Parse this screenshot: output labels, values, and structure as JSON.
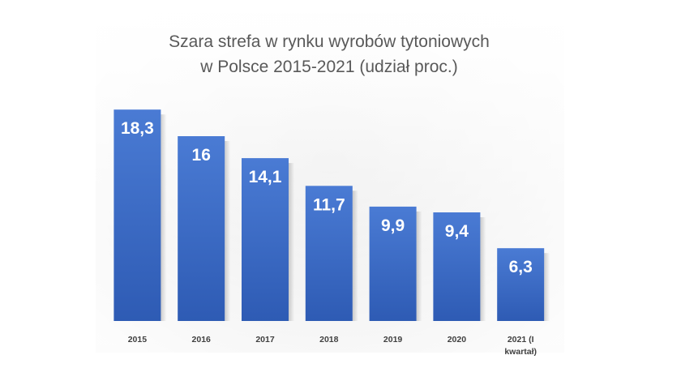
{
  "chart_data": {
    "type": "bar",
    "title": "Szara strefa w rynku wyrobów tytoniowych",
    "subtitle": "w Polsce 2015-2021 (udział proc.)",
    "categories": [
      "2015",
      "2016",
      "2017",
      "2018",
      "2019",
      "2020",
      "2021 (I kwartał)"
    ],
    "category_lines": [
      [
        "2015"
      ],
      [
        "2016"
      ],
      [
        "2017"
      ],
      [
        "2018"
      ],
      [
        "2019"
      ],
      [
        "2020"
      ],
      [
        "2021 (I",
        "kwartał)"
      ]
    ],
    "values": [
      18.3,
      16,
      14.1,
      11.7,
      9.9,
      9.4,
      6.3
    ],
    "value_labels": [
      "18,3",
      "16",
      "14,1",
      "11,7",
      "9,9",
      "9,4",
      "6,3"
    ],
    "xlabel": "",
    "ylabel": "",
    "ylim": [
      0,
      20
    ],
    "grid": false,
    "legend": "none",
    "colors": {
      "bar_top": "#4a7bd4",
      "bar_bottom": "#2e5bb4",
      "value_text": "#ffffff",
      "title_text": "#595959",
      "category_text": "#404040",
      "panel_top": "#ffffff",
      "panel_bottom": "#e6e6e6"
    }
  }
}
